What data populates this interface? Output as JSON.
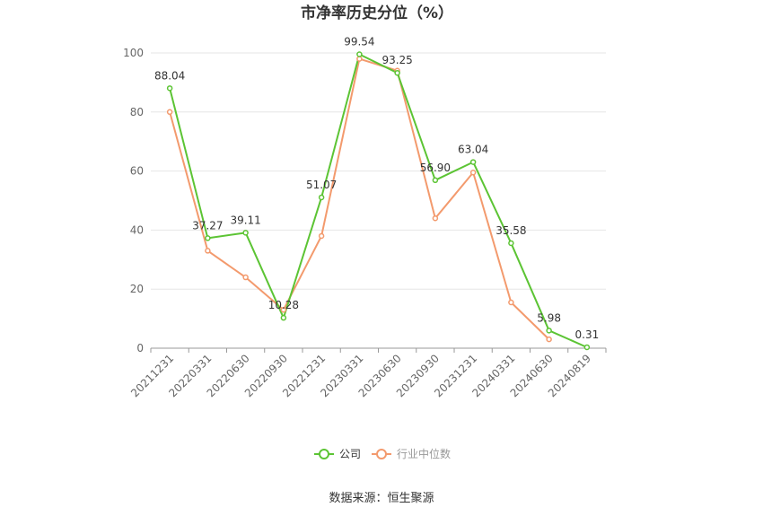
{
  "chart_data": {
    "type": "line",
    "title": "市净率历史分位（%）",
    "categories": [
      "20211231",
      "20220331",
      "20220630",
      "20220930",
      "20221231",
      "20230331",
      "20230630",
      "20230930",
      "20231231",
      "20240331",
      "20240630",
      "20240819"
    ],
    "series": [
      {
        "name": "公司",
        "color": "#5cc434",
        "values": [
          88.04,
          37.27,
          39.11,
          10.28,
          51.07,
          99.54,
          93.25,
          56.9,
          63.04,
          35.58,
          5.98,
          0.31
        ],
        "labels": [
          "88.04",
          "37.27",
          "39.11",
          "10.28",
          "51.07",
          "99.54",
          "93.25",
          "56.90",
          "63.04",
          "35.58",
          "5.98",
          "0.31"
        ]
      },
      {
        "name": "行业中位数",
        "color": "#f39a6d",
        "values": [
          80,
          33,
          24,
          13,
          38,
          98,
          94,
          44,
          59.5,
          15.5,
          3,
          null
        ]
      }
    ],
    "yticks": [
      0,
      20,
      40,
      60,
      80,
      100
    ],
    "ytick_labels": [
      "0",
      "20",
      "40",
      "60",
      "80",
      "100"
    ],
    "ylim": [
      0,
      100
    ],
    "grid": true,
    "legend_position": "bottom-center"
  },
  "footer": {
    "source": "数据来源：恒生聚源"
  }
}
